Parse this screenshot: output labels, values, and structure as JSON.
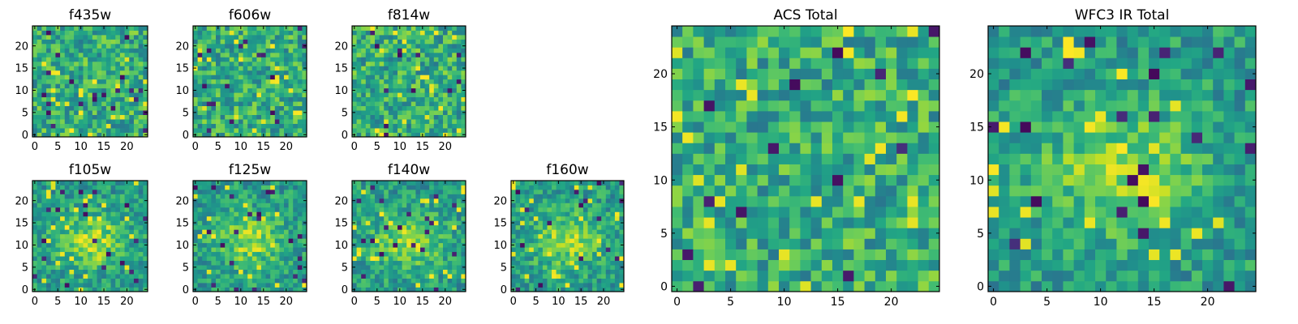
{
  "chart_data": [
    {
      "type": "heatmap",
      "title": "f435w",
      "xlabel": "",
      "ylabel": "",
      "grid": false,
      "xlim": [
        -0.5,
        24.5
      ],
      "ylim": [
        -0.5,
        24.5
      ],
      "xticks": [
        0,
        5,
        10,
        15,
        20
      ],
      "yticks": [
        0,
        5,
        10,
        15,
        20
      ],
      "colormap": "viridis",
      "pattern": "noise",
      "cells": 25
    },
    {
      "type": "heatmap",
      "title": "f606w",
      "xlabel": "",
      "ylabel": "",
      "grid": false,
      "xlim": [
        -0.5,
        24.5
      ],
      "ylim": [
        -0.5,
        24.5
      ],
      "xticks": [
        0,
        5,
        10,
        15,
        20
      ],
      "yticks": [
        0,
        5,
        10,
        15,
        20
      ],
      "colormap": "viridis",
      "pattern": "noise",
      "cells": 25
    },
    {
      "type": "heatmap",
      "title": "f814w",
      "xlabel": "",
      "ylabel": "",
      "grid": false,
      "xlim": [
        -0.5,
        24.5
      ],
      "ylim": [
        -0.5,
        24.5
      ],
      "xticks": [
        0,
        5,
        10,
        15,
        20
      ],
      "yticks": [
        0,
        5,
        10,
        15,
        20
      ],
      "colormap": "viridis",
      "pattern": "noise",
      "cells": 25
    },
    {
      "type": "heatmap",
      "title": "f105w",
      "xlabel": "",
      "ylabel": "",
      "grid": false,
      "xlim": [
        -0.5,
        24.5
      ],
      "ylim": [
        -0.5,
        24.5
      ],
      "xticks": [
        0,
        5,
        10,
        15,
        20
      ],
      "yticks": [
        0,
        5,
        10,
        15,
        20
      ],
      "colormap": "viridis",
      "pattern": "source",
      "cells": 25
    },
    {
      "type": "heatmap",
      "title": "f125w",
      "xlabel": "",
      "ylabel": "",
      "grid": false,
      "xlim": [
        -0.5,
        24.5
      ],
      "ylim": [
        -0.5,
        24.5
      ],
      "xticks": [
        0,
        5,
        10,
        15,
        20
      ],
      "yticks": [
        0,
        5,
        10,
        15,
        20
      ],
      "colormap": "viridis",
      "pattern": "source",
      "cells": 25
    },
    {
      "type": "heatmap",
      "title": "f140w",
      "xlabel": "",
      "ylabel": "",
      "grid": false,
      "xlim": [
        -0.5,
        24.5
      ],
      "ylim": [
        -0.5,
        24.5
      ],
      "xticks": [
        0,
        5,
        10,
        15,
        20
      ],
      "yticks": [
        0,
        5,
        10,
        15,
        20
      ],
      "colormap": "viridis",
      "pattern": "source",
      "cells": 25
    },
    {
      "type": "heatmap",
      "title": "f160w",
      "xlabel": "",
      "ylabel": "",
      "grid": false,
      "xlim": [
        -0.5,
        24.5
      ],
      "ylim": [
        -0.5,
        24.5
      ],
      "xticks": [
        0,
        5,
        10,
        15,
        20
      ],
      "yticks": [
        0,
        5,
        10,
        15,
        20
      ],
      "colormap": "viridis",
      "pattern": "source",
      "cells": 25
    },
    {
      "type": "heatmap",
      "title": "ACS Total",
      "xlabel": "",
      "ylabel": "",
      "grid": false,
      "xlim": [
        -0.5,
        24.5
      ],
      "ylim": [
        -0.5,
        24.5
      ],
      "xticks": [
        0,
        5,
        10,
        15,
        20
      ],
      "yticks": [
        0,
        5,
        10,
        15,
        20
      ],
      "colormap": "viridis",
      "pattern": "noise",
      "cells": 25
    },
    {
      "type": "heatmap",
      "title": "WFC3 IR Total",
      "xlabel": "",
      "ylabel": "",
      "grid": false,
      "xlim": [
        -0.5,
        24.5
      ],
      "ylim": [
        -0.5,
        24.5
      ],
      "xticks": [
        0,
        5,
        10,
        15,
        20
      ],
      "yticks": [
        0,
        5,
        10,
        15,
        20
      ],
      "colormap": "viridis",
      "pattern": "source",
      "cells": 25
    }
  ]
}
